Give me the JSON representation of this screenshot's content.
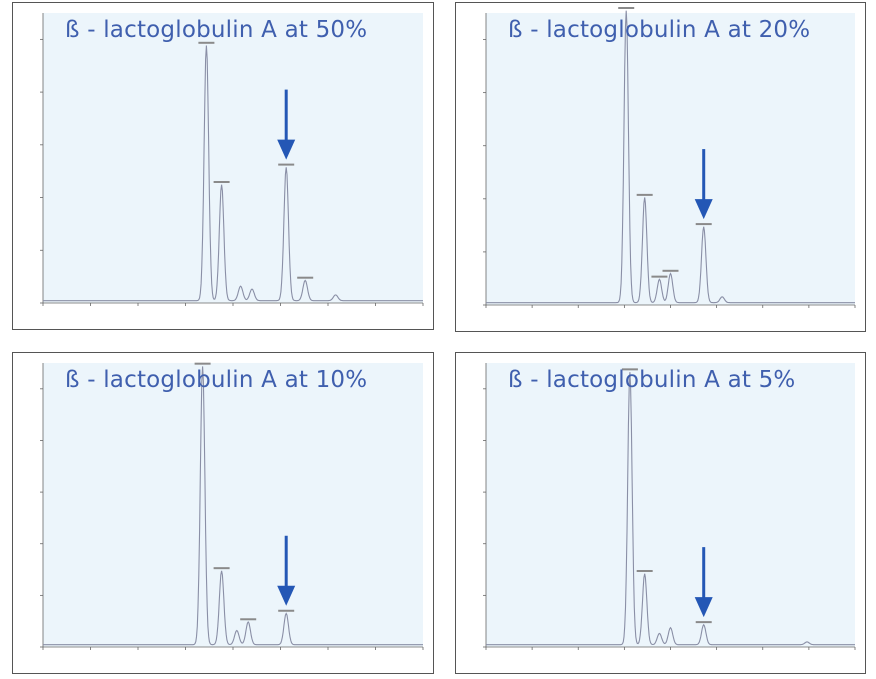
{
  "colors": {
    "title": "#3f5fae",
    "arrow": "#2457b5",
    "trace": "#8a8fa6",
    "plot_bg": "#ecf5fb"
  },
  "panels": [
    {
      "title": "ß - lactoglobulin A at 50%"
    },
    {
      "title": "ß - lactoglobulin A at 20%"
    },
    {
      "title": "ß - lactoglobulin A at 10%"
    },
    {
      "title": "ß - lactoglobulin A at 5%"
    }
  ],
  "chart_data": [
    {
      "type": "line",
      "title": "ß - lactoglobulin A at 50%",
      "xlim": [
        0,
        1
      ],
      "ylim": [
        0,
        1
      ],
      "grid": false,
      "peaks": [
        {
          "x": 0.43,
          "y": 0.88
        },
        {
          "x": 0.47,
          "y": 0.4
        },
        {
          "x": 0.52,
          "y": 0.05
        },
        {
          "x": 0.55,
          "y": 0.04
        },
        {
          "x": 0.64,
          "y": 0.46
        },
        {
          "x": 0.69,
          "y": 0.07
        },
        {
          "x": 0.77,
          "y": 0.02
        }
      ],
      "arrow_x": 0.64
    },
    {
      "type": "line",
      "title": "ß - lactoglobulin A at 20%",
      "xlim": [
        0,
        1
      ],
      "ylim": [
        0,
        1
      ],
      "grid": false,
      "peaks": [
        {
          "x": 0.38,
          "y": 1.0
        },
        {
          "x": 0.43,
          "y": 0.36
        },
        {
          "x": 0.47,
          "y": 0.08
        },
        {
          "x": 0.5,
          "y": 0.1
        },
        {
          "x": 0.59,
          "y": 0.26
        },
        {
          "x": 0.64,
          "y": 0.02
        }
      ],
      "arrow_x": 0.59
    },
    {
      "type": "line",
      "title": "ß - lactoglobulin A at 10%",
      "xlim": [
        0,
        1
      ],
      "ylim": [
        0,
        1
      ],
      "grid": false,
      "peaks": [
        {
          "x": 0.42,
          "y": 0.98
        },
        {
          "x": 0.47,
          "y": 0.26
        },
        {
          "x": 0.51,
          "y": 0.05
        },
        {
          "x": 0.54,
          "y": 0.08
        },
        {
          "x": 0.64,
          "y": 0.11
        }
      ],
      "arrow_x": 0.64
    },
    {
      "type": "line",
      "title": "ß - lactoglobulin A at 5%",
      "xlim": [
        0,
        1
      ],
      "ylim": [
        0,
        1
      ],
      "grid": false,
      "peaks": [
        {
          "x": 0.39,
          "y": 0.96
        },
        {
          "x": 0.43,
          "y": 0.25
        },
        {
          "x": 0.47,
          "y": 0.04
        },
        {
          "x": 0.5,
          "y": 0.06
        },
        {
          "x": 0.59,
          "y": 0.07
        },
        {
          "x": 0.87,
          "y": 0.01
        }
      ],
      "arrow_x": 0.59
    }
  ]
}
